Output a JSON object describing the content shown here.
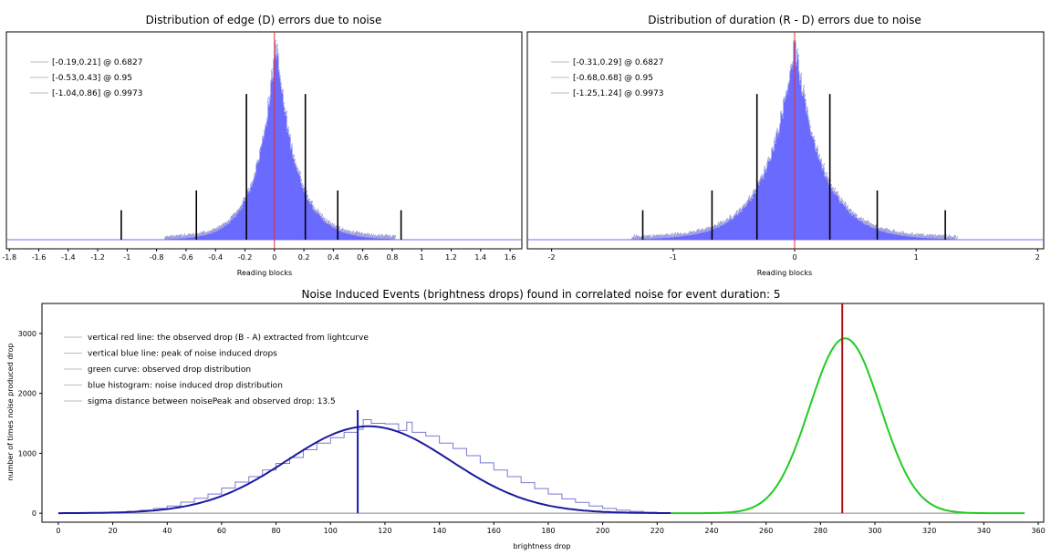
{
  "chart_data": [
    {
      "type": "histogram",
      "title": "Distribution of edge (D) errors due to noise",
      "xlabel": "Reading blocks",
      "ylabel": "",
      "xlim": [
        -1.82,
        1.68
      ],
      "x_ticks": [
        "-1.8",
        "-1.6",
        "-1.4",
        "-1.2",
        "-1",
        "-0.8",
        "-0.6",
        "-0.4",
        "-0.2",
        "0",
        "0.2",
        "0.4",
        "0.6",
        "0.8",
        "1",
        "1.2",
        "1.4",
        "1.6"
      ],
      "x_tick_values": [
        -1.8,
        -1.6,
        -1.4,
        -1.2,
        -1,
        -0.8,
        -0.6,
        -0.4,
        -0.2,
        0,
        0.2,
        0.4,
        0.6,
        0.8,
        1,
        1.2,
        1.4,
        1.6
      ],
      "grid": false,
      "histogram": {
        "center": 0.01,
        "left_scale": 0.13,
        "right_scale": 0.14,
        "peak": 1.0,
        "color": "#5a5aff"
      },
      "zero_line": {
        "x": 0,
        "color": "#e03030"
      },
      "confidence_intervals": [
        {
          "label": "[-0.19,0.21] @ 0.6827",
          "low": -0.19,
          "high": 0.21,
          "height": 0.74
        },
        {
          "label": "[-0.53,0.43] @ 0.95",
          "low": -0.53,
          "high": 0.43,
          "height": 0.25
        },
        {
          "label": "[-1.04,0.86] @ 0.9973",
          "low": -1.04,
          "high": 0.86,
          "height": 0.15
        }
      ],
      "legend_position": "top-left"
    },
    {
      "type": "histogram",
      "title": "Distribution of duration (R - D) errors due to noise",
      "xlabel": "Reading blocks",
      "ylabel": "",
      "xlim": [
        -2.2,
        2.05
      ],
      "x_ticks": [
        "-2",
        "-1",
        "0",
        "1",
        "2"
      ],
      "x_tick_values": [
        -2,
        -1,
        0,
        1,
        2
      ],
      "grid": false,
      "histogram": {
        "center": 0.0,
        "left_scale": 0.23,
        "right_scale": 0.23,
        "peak": 1.0,
        "color": "#5a5aff"
      },
      "zero_line": {
        "x": 0,
        "color": "#e03030"
      },
      "confidence_intervals": [
        {
          "label": "[-0.31,0.29] @ 0.6827",
          "low": -0.31,
          "high": 0.29,
          "height": 0.74
        },
        {
          "label": "[-0.68,0.68] @ 0.95",
          "low": -0.68,
          "high": 0.68,
          "height": 0.25
        },
        {
          "label": "[-1.25,1.24] @ 0.9973",
          "low": -1.25,
          "high": 1.24,
          "height": 0.15
        }
      ],
      "legend_position": "top-left"
    },
    {
      "type": "line",
      "title": "Noise Induced Events (brightness drops) found in correlated noise for event duration: 5",
      "xlabel": "brightness drop",
      "ylabel": "number of times noise produced drop",
      "xlim": [
        -6,
        362
      ],
      "ylim": [
        -150,
        3500
      ],
      "x_ticks": [
        "0",
        "20",
        "40",
        "60",
        "80",
        "100",
        "120",
        "140",
        "160",
        "180",
        "200",
        "220",
        "240",
        "260",
        "280",
        "300",
        "320",
        "340",
        "360"
      ],
      "x_tick_values": [
        0,
        20,
        40,
        60,
        80,
        100,
        120,
        140,
        160,
        180,
        200,
        220,
        240,
        260,
        280,
        300,
        320,
        340,
        360
      ],
      "y_ticks": [
        "0",
        "1000",
        "2000",
        "3000"
      ],
      "y_tick_values": [
        0,
        1000,
        2000,
        3000
      ],
      "legend": [
        "vertical red line: the observed drop (B - A) extracted from lightcurve",
        "vertical blue line: peak of noise induced drops",
        "green curve: observed drop distribution",
        "blue histogram: noise induced drop distribution",
        "sigma distance between noisePeak and observed drop: 13.5"
      ],
      "legend_position": "top-left",
      "noise_curve": {
        "mean": 114,
        "sigma": 30,
        "amplitude": 1450,
        "x_range": [
          0,
          225
        ],
        "color": "#1a1aa0"
      },
      "noise_histogram_steps": [
        [
          0,
          0
        ],
        [
          5,
          1
        ],
        [
          10,
          3
        ],
        [
          15,
          8
        ],
        [
          20,
          15
        ],
        [
          25,
          28
        ],
        [
          30,
          50
        ],
        [
          35,
          80
        ],
        [
          40,
          120
        ],
        [
          45,
          185
        ],
        [
          50,
          250
        ],
        [
          55,
          320
        ],
        [
          60,
          420
        ],
        [
          65,
          520
        ],
        [
          70,
          610
        ],
        [
          75,
          720
        ],
        [
          80,
          830
        ],
        [
          85,
          930
        ],
        [
          90,
          1060
        ],
        [
          95,
          1170
        ],
        [
          100,
          1260
        ],
        [
          105,
          1350
        ],
        [
          110,
          1400
        ],
        [
          112,
          1560
        ],
        [
          115,
          1500
        ],
        [
          120,
          1490
        ],
        [
          125,
          1380
        ],
        [
          128,
          1520
        ],
        [
          130,
          1350
        ],
        [
          135,
          1290
        ],
        [
          140,
          1170
        ],
        [
          145,
          1080
        ],
        [
          150,
          960
        ],
        [
          155,
          840
        ],
        [
          160,
          720
        ],
        [
          165,
          610
        ],
        [
          170,
          510
        ],
        [
          175,
          410
        ],
        [
          180,
          320
        ],
        [
          185,
          240
        ],
        [
          190,
          180
        ],
        [
          195,
          120
        ],
        [
          200,
          80
        ],
        [
          205,
          50
        ],
        [
          210,
          30
        ],
        [
          215,
          15
        ],
        [
          220,
          7
        ],
        [
          225,
          0
        ]
      ],
      "observed_curve": {
        "mean": 289,
        "sigma": 13,
        "amplitude": 2920,
        "x_range": [
          225,
          355
        ],
        "color": "#22cc22"
      },
      "noise_peak": {
        "x": 110,
        "y_top": 1720,
        "color": "#1a1aa0"
      },
      "observed_drop": {
        "x": 288,
        "y_top": 3500,
        "color": "#b01010"
      },
      "baseline": {
        "y": 0,
        "x_range": [
          0,
          355
        ]
      }
    }
  ]
}
